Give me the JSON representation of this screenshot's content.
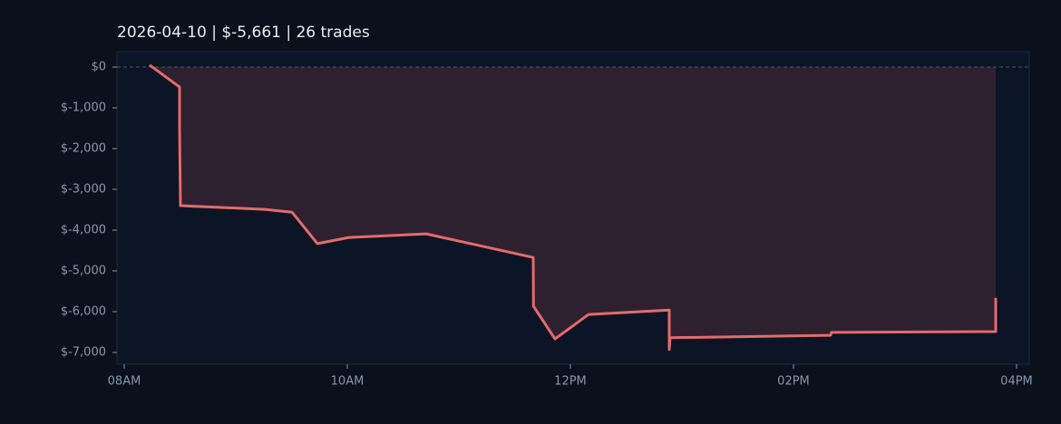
{
  "chart_data": {
    "type": "line",
    "title": "2026-04-10  |  $-5,661  |  26 trades",
    "x": [
      8.228,
      8.496,
      8.496,
      8.5,
      8.504,
      9.26,
      9.504,
      9.732,
      10.016,
      10.707,
      11.667,
      11.669,
      11.862,
      12.163,
      12.886,
      12.886,
      12.894,
      14.333,
      14.341,
      15.813,
      15.813
    ],
    "values": [
      50,
      -490,
      -1500,
      -2450,
      -3400,
      -3490,
      -3560,
      -4330,
      -4180,
      -4090,
      -4670,
      -5870,
      -6670,
      -6070,
      -5960,
      -6930,
      -6640,
      -6580,
      -6510,
      -6490,
      -5661
    ],
    "color": "#e8696b",
    "fill": true,
    "zero_line": true,
    "xlim": [
      7.935,
      16.114
    ],
    "xticks": [
      {
        "value": 8,
        "label": "08AM"
      },
      {
        "value": 10,
        "label": "10AM"
      },
      {
        "value": 12,
        "label": "12PM"
      },
      {
        "value": 14,
        "label": "02PM"
      },
      {
        "value": 16,
        "label": "04PM"
      }
    ],
    "ylim": [
      -7289,
      378
    ],
    "yticks": [
      {
        "value": 0,
        "label": "$0"
      },
      {
        "value": -1000,
        "label": "$-1,000"
      },
      {
        "value": -2000,
        "label": "$-2,000"
      },
      {
        "value": -3000,
        "label": "$-3,000"
      },
      {
        "value": -4000,
        "label": "$-4,000"
      },
      {
        "value": -5000,
        "label": "$-5,000"
      },
      {
        "value": -6000,
        "label": "$-6,000"
      },
      {
        "value": -7000,
        "label": "$-7,000"
      }
    ]
  }
}
